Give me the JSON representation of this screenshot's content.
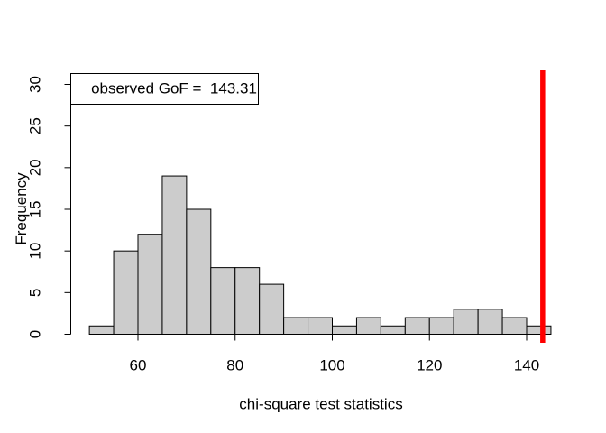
{
  "chart_data": {
    "type": "bar",
    "subtype": "histogram",
    "title": "",
    "xlabel": "chi-square test statistics",
    "ylabel": "Frequency",
    "bin_start": 50,
    "bin_width": 5,
    "bin_edges": [
      50,
      55,
      60,
      65,
      70,
      75,
      80,
      85,
      90,
      95,
      100,
      105,
      110,
      115,
      120,
      125,
      130,
      135,
      140,
      145
    ],
    "counts": [
      1,
      10,
      12,
      19,
      15,
      8,
      8,
      6,
      2,
      2,
      1,
      2,
      1,
      2,
      2,
      3,
      3,
      2,
      1
    ],
    "total_samples": 100,
    "x_ticks": [
      60,
      80,
      100,
      120,
      140
    ],
    "y_ticks": [
      0,
      5,
      10,
      15,
      20,
      25,
      30
    ],
    "ylim": [
      0,
      30
    ],
    "grid": false,
    "legend": {
      "text": "observed GoF =  143.31",
      "position": "topleft"
    },
    "observed_line": {
      "value": 143.31,
      "color": "#ff0000"
    },
    "colors": {
      "bar_fill": "#cccccc",
      "bar_border": "#000000",
      "axis": "#000000",
      "text": "#000000",
      "background": "#ffffff"
    }
  }
}
